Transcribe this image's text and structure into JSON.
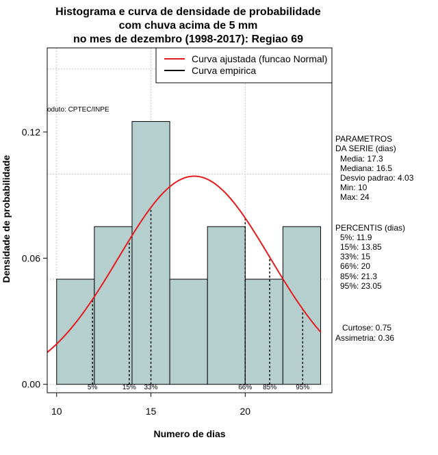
{
  "chart_data": {
    "type": "bar",
    "title_lines": [
      "Histograma e curva de densidade de probabilidade",
      "com chuva acima de 5 mm",
      "no mes de dezembro (1998-2017): Regiao 69"
    ],
    "xlabel": "Numero de dias",
    "ylabel": "Densidade de probabilidade",
    "xlim": [
      9.5,
      24.6
    ],
    "ylim": [
      -0.004,
      0.16
    ],
    "x_ticks": [
      10,
      15,
      20
    ],
    "y_ticks": [
      0.0,
      0.06,
      0.12
    ],
    "y_tick_labels": [
      "0.00",
      "0.06",
      "0.12"
    ],
    "grid": true,
    "bins": [
      {
        "from": 10,
        "to": 12,
        "density": 0.05
      },
      {
        "from": 12,
        "to": 14,
        "density": 0.075
      },
      {
        "from": 14,
        "to": 16,
        "density": 0.125
      },
      {
        "from": 16,
        "to": 18,
        "density": 0.05
      },
      {
        "from": 18,
        "to": 20,
        "density": 0.075
      },
      {
        "from": 20,
        "to": 22,
        "density": 0.05
      },
      {
        "from": 22,
        "to": 24,
        "density": 0.075
      }
    ],
    "bar_color": "#b5cfcf",
    "normal_curve": {
      "mean": 17.3,
      "sd": 4.03,
      "color": "#e41a1c"
    },
    "percentile_lines": [
      {
        "label": "5%",
        "x": 11.9
      },
      {
        "label": "15%",
        "x": 13.85
      },
      {
        "label": "33%",
        "x": 15
      },
      {
        "label": "66%",
        "x": 20
      },
      {
        "label": "85%",
        "x": 21.3
      },
      {
        "label": "95%",
        "x": 23.05
      }
    ],
    "legend": [
      {
        "label": "Curva ajustada (funcao Normal)",
        "color": "#e41a1c"
      },
      {
        "label": "Curva empirica",
        "color": "#000000"
      }
    ],
    "legend_position": "top-right",
    "source_label": "oduto: CPTEC/INPE",
    "side_panel": {
      "params_title": [
        "PARAMETROS",
        "DA SERIE (dias)"
      ],
      "params": [
        "Media: 17.3",
        "Mediana: 16.5",
        "Desvio padrao: 4.03",
        "Min: 10",
        "Max: 24"
      ],
      "percentiles_title": "PERCENTIS (dias)",
      "percentiles": [
        "5%: 11.9",
        "15%: 13.85",
        "33%: 15",
        "66%: 20",
        "85%: 21.3",
        "95%: 23.05"
      ],
      "curtose": "Curtose: 0.75",
      "assimetria": "Assimetria: 0.36"
    }
  }
}
